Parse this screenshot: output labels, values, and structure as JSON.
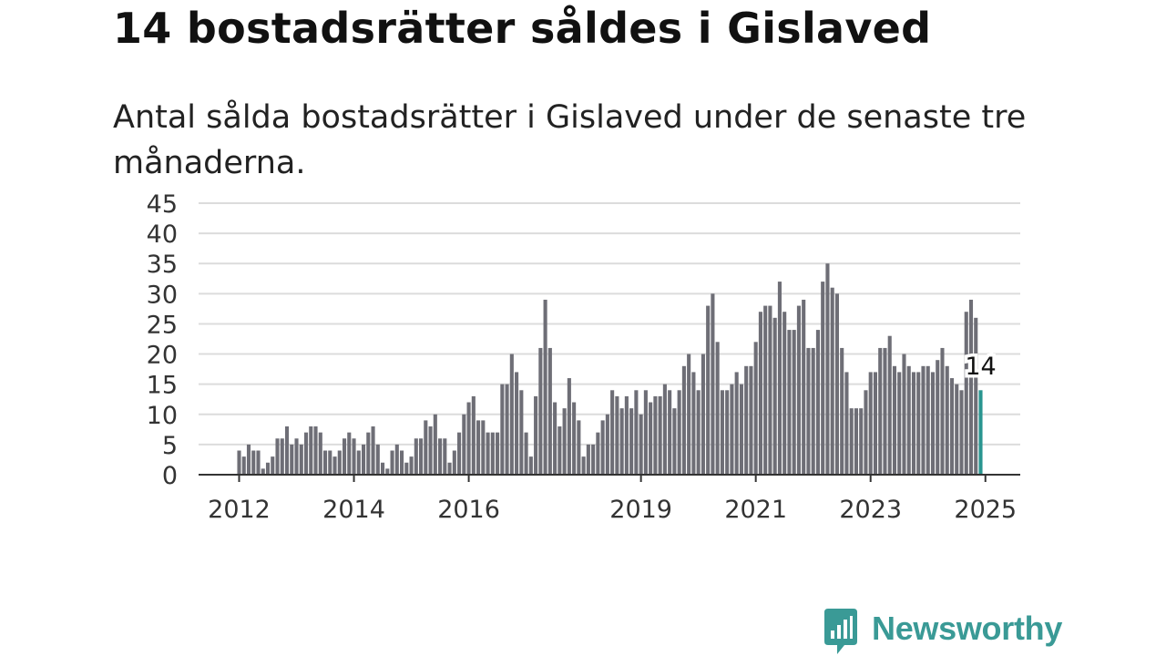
{
  "page": {
    "title": "14 bostadsrätter såldes i Gislaved",
    "subtitle": "Antal sålda bostadsrätter i Gislaved under de senaste tre månaderna."
  },
  "brand": {
    "name": "Newsworthy",
    "logo_icon": "bar-chart-speech-bubble-icon",
    "color": "#3a9a96"
  },
  "chart_data": {
    "type": "bar",
    "x_type": "month",
    "series": [
      {
        "values": [
          4,
          3,
          5,
          4,
          4,
          1,
          2,
          3,
          6,
          6,
          8,
          5,
          6,
          5,
          7,
          8,
          8,
          7,
          4,
          4,
          3,
          4,
          6,
          7,
          6,
          4,
          5,
          7,
          8,
          5,
          2,
          1,
          4,
          5,
          4,
          2,
          3,
          6,
          6,
          9,
          8,
          10,
          6,
          6,
          2,
          4,
          7,
          10,
          12,
          13,
          9,
          9,
          7,
          7,
          7,
          15,
          15,
          20,
          17,
          14,
          7,
          3,
          13,
          21,
          29,
          21,
          12,
          8,
          11,
          16,
          12,
          9,
          3,
          5,
          5,
          7,
          9,
          10,
          14,
          13,
          11,
          13,
          11,
          14,
          10,
          14,
          12,
          13,
          13,
          15,
          14,
          11,
          14,
          18,
          20,
          17,
          14,
          20,
          28,
          30,
          22,
          14,
          14,
          15,
          17,
          15,
          18,
          18,
          22,
          27,
          28,
          28,
          26,
          32,
          27,
          24,
          24,
          28,
          29,
          21,
          21,
          24,
          32,
          35,
          31,
          30,
          21,
          17,
          11,
          11,
          11,
          14,
          17,
          17,
          21,
          21,
          23,
          18,
          17,
          20,
          18,
          17,
          17,
          18,
          18,
          17,
          19,
          21,
          18,
          16,
          15,
          14,
          27,
          29,
          26,
          14
        ]
      }
    ],
    "start_month": "2012-01",
    "x_ticks": [
      "2012",
      "2014",
      "2016",
      "2019",
      "2021",
      "2023",
      "2025"
    ],
    "y_ticks": [
      0,
      5,
      10,
      15,
      20,
      25,
      30,
      35,
      40,
      45
    ],
    "ylim": [
      0,
      45
    ],
    "grid": true,
    "highlight": {
      "last_value_label": "14",
      "color": "#2a9590"
    },
    "bar_color": "#6e6e76"
  }
}
